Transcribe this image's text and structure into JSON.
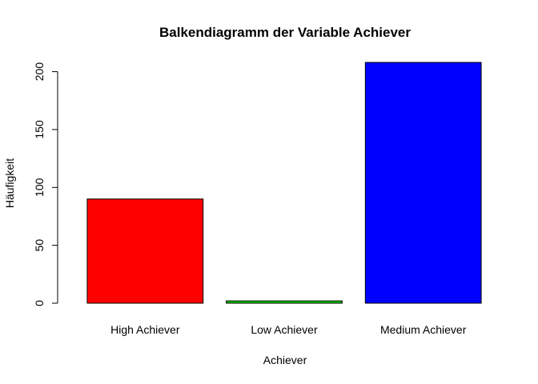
{
  "chart_data": {
    "type": "bar",
    "title": "Balkendiagramm der Variable Achiever",
    "xlabel": "Achiever",
    "ylabel": "Häufigkeit",
    "categories": [
      "High Achiever",
      "Low Achiever",
      "Medium Achiever"
    ],
    "values": [
      90,
      2,
      208
    ],
    "colors": [
      "#ff0000",
      "#00cd00",
      "#0000ff"
    ],
    "yticks": [
      0,
      50,
      100,
      150,
      200
    ],
    "ytick_labels": [
      "0",
      "50",
      "100",
      "150",
      "200"
    ],
    "ylim": [
      0,
      208
    ],
    "grid": false,
    "legend": "none"
  }
}
